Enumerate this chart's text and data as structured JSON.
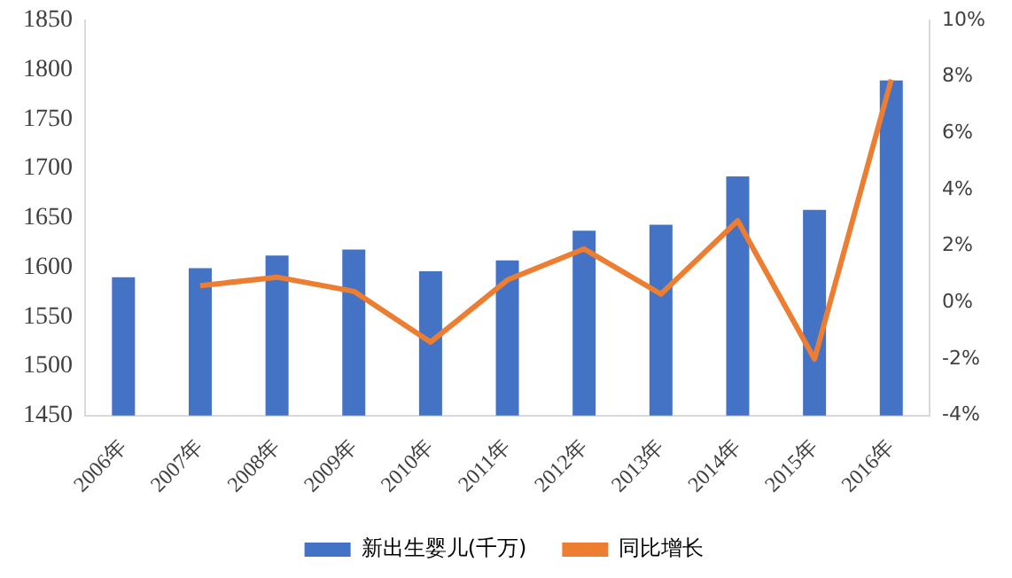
{
  "chart_data": {
    "type": "bar",
    "categories": [
      "2006年",
      "2007年",
      "2008年",
      "2009年",
      "2010年",
      "2011年",
      "2012年",
      "2013年",
      "2014年",
      "2015年",
      "2016年"
    ],
    "series": [
      {
        "name": "新出生婴儿(千万)",
        "color": "#4472c4",
        "values": [
          1590,
          1599,
          1612,
          1618,
          1596,
          1607,
          1637,
          1643,
          1692,
          1658,
          1789
        ]
      },
      {
        "name": "同比增长",
        "type": "line",
        "axis": "y2",
        "color": "#ed7d31",
        "values": [
          null,
          0.6,
          0.9,
          0.4,
          -1.4,
          0.8,
          1.9,
          0.3,
          2.9,
          -2.0,
          7.9
        ]
      }
    ],
    "ylim": [
      1450,
      1850
    ],
    "yticks": [
      1450,
      1500,
      1550,
      1600,
      1650,
      1700,
      1750,
      1800,
      1850
    ],
    "y2lim": [
      -4,
      10
    ],
    "y2ticks": [
      {
        "value": -4,
        "label": "-4%"
      },
      {
        "value": -2,
        "label": "-2%"
      },
      {
        "value": 0,
        "label": "0%"
      },
      {
        "value": 2,
        "label": "2%"
      },
      {
        "value": 4,
        "label": "4%"
      },
      {
        "value": 6,
        "label": "6%"
      },
      {
        "value": 8,
        "label": "8%"
      },
      {
        "value": 10,
        "label": "10%"
      }
    ],
    "grid": false,
    "legend": "bottom",
    "marker": "none"
  }
}
